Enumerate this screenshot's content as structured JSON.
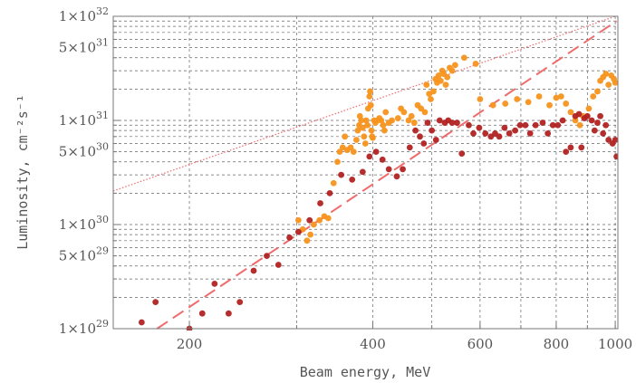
{
  "chart_data": {
    "type": "scatter",
    "xlabel": "Beam energy, MeV",
    "ylabel": "Luminosity, cm⁻²s⁻¹",
    "x_scale": "log",
    "y_scale": "log",
    "xlim": [
      150,
      1010
    ],
    "ylim": [
      1e+29,
      1e+32
    ],
    "grid": true,
    "x_ticks": [
      {
        "value": 200,
        "label": "200"
      },
      {
        "value": 400,
        "label": "400"
      },
      {
        "value": 600,
        "label": "600"
      },
      {
        "value": 800,
        "label": "800"
      },
      {
        "value": 1000,
        "label": "1000"
      }
    ],
    "y_ticks": [
      {
        "value": 1e+29,
        "mant": "1",
        "exp": "29"
      },
      {
        "value": 5e+29,
        "mant": "5",
        "exp": "29"
      },
      {
        "value": 1e+30,
        "mant": "1",
        "exp": "30"
      },
      {
        "value": 5e+30,
        "mant": "5",
        "exp": "30"
      },
      {
        "value": 1e+31,
        "mant": "1",
        "exp": "31"
      },
      {
        "value": 5e+31,
        "mant": "5",
        "exp": "31"
      },
      {
        "value": 1e+32,
        "mant": "1",
        "exp": "32"
      }
    ],
    "series": [
      {
        "color": "#f7941d",
        "points": [
          [
            302,
            1.1e+30
          ],
          [
            307,
            9e+29
          ],
          [
            312,
            7e+29
          ],
          [
            316,
            8e+29
          ],
          [
            320,
            1e+30
          ],
          [
            327,
            1.1e+30
          ],
          [
            333,
            1.2e+30
          ],
          [
            338,
            1.15e+30
          ],
          [
            345,
            2.5e+30
          ],
          [
            350,
            4e+30
          ],
          [
            353,
            5e+30
          ],
          [
            357,
            5.5e+30
          ],
          [
            360,
            7e+30
          ],
          [
            363,
            5.2e+30
          ],
          [
            368,
            5.5e+30
          ],
          [
            372,
            5e+30
          ],
          [
            376,
            6.5e+30
          ],
          [
            378,
            8e+30
          ],
          [
            380,
            9e+30
          ],
          [
            381,
            1.1e+31
          ],
          [
            383,
            1e+31
          ],
          [
            385,
            8.5e+30
          ],
          [
            387,
            7e+30
          ],
          [
            389,
            6e+30
          ],
          [
            390,
            1e+31
          ],
          [
            392,
            9e+30
          ],
          [
            393,
            1.3e+31
          ],
          [
            395,
            1.7e+31
          ],
          [
            396,
            1.9e+31
          ],
          [
            397,
            1.4e+31
          ],
          [
            398,
            8e+30
          ],
          [
            399,
            7e+30
          ],
          [
            400,
            6.8e+30
          ],
          [
            402,
            1e+31
          ],
          [
            404,
            9.5e+30
          ],
          [
            407,
            1e+31
          ],
          [
            410,
            1.05e+31
          ],
          [
            413,
            1e+31
          ],
          [
            416,
            9e+30
          ],
          [
            418,
            8e+30
          ],
          [
            420,
            1.2e+31
          ],
          [
            425,
            9.5e+30
          ],
          [
            430,
            1e+31
          ],
          [
            440,
            1.05e+31
          ],
          [
            445,
            1.3e+31
          ],
          [
            450,
            1.2e+31
          ],
          [
            458,
            1e+31
          ],
          [
            463,
            1.1e+31
          ],
          [
            468,
            9.5e+30
          ],
          [
            474,
            1.4e+31
          ],
          [
            480,
            1.3e+31
          ],
          [
            487,
            1.2e+31
          ],
          [
            490,
            2.2e+31
          ],
          [
            495,
            1.8e+31
          ],
          [
            498,
            1.6e+31
          ],
          [
            503,
            1.9e+31
          ],
          [
            507,
            2.5e+31
          ],
          [
            510,
            2.3e+31
          ],
          [
            513,
            2.7e+31
          ],
          [
            517,
            2.4e+31
          ],
          [
            520,
            3e+31
          ],
          [
            523,
            2.8e+31
          ],
          [
            527,
            2.2e+31
          ],
          [
            530,
            2.6e+31
          ],
          [
            535,
            3.2e+31
          ],
          [
            540,
            3e+31
          ],
          [
            546,
            3.4e+31
          ],
          [
            565,
            4e+31
          ],
          [
            590,
            3.5e+31
          ],
          [
            600,
            1.6e+31
          ],
          [
            630,
            1.4e+31
          ],
          [
            660,
            1.45e+31
          ],
          [
            690,
            1.6e+31
          ],
          [
            720,
            1.5e+31
          ],
          [
            750,
            1.7e+31
          ],
          [
            780,
            1.4e+31
          ],
          [
            800,
            1.65e+31
          ],
          [
            815,
            1.7e+31
          ],
          [
            830,
            1.45e+31
          ],
          [
            845,
            1.2e+31
          ],
          [
            860,
            1e+31
          ],
          [
            875,
            9e+30
          ],
          [
            885,
            1.1e+31
          ],
          [
            905,
            1.3e+31
          ],
          [
            920,
            1.7e+31
          ],
          [
            935,
            1.9e+31
          ],
          [
            945,
            2.4e+31
          ],
          [
            955,
            2.6e+31
          ],
          [
            965,
            2.8e+31
          ],
          [
            975,
            2.2e+31
          ],
          [
            985,
            2.7e+31
          ],
          [
            995,
            2.5e+31
          ],
          [
            1000,
            2.3e+31
          ]
        ]
      },
      {
        "color": "#b22222",
        "points": [
          [
            167,
            1.15e+29
          ],
          [
            176,
            1.8e+29
          ],
          [
            187,
            8.5e+28
          ],
          [
            200,
            1e+29
          ],
          [
            210,
            1.4e+29
          ],
          [
            220,
            2.7e+29
          ],
          [
            232,
            1.4e+29
          ],
          [
            242,
            1.8e+29
          ],
          [
            255,
            3.6e+29
          ],
          [
            268,
            5e+29
          ],
          [
            280,
            4.1e+29
          ],
          [
            292,
            7.5e+29
          ],
          [
            302,
            8.5e+29
          ],
          [
            315,
            1.1e+30
          ],
          [
            328,
            1.6e+30
          ],
          [
            340,
            2e+30
          ],
          [
            355,
            3e+30
          ],
          [
            370,
            2.7e+30
          ],
          [
            385,
            3.2e+30
          ],
          [
            395,
            4.5e+30
          ],
          [
            405,
            5e+30
          ],
          [
            415,
            4.2e+30
          ],
          [
            425,
            3.4e+30
          ],
          [
            438,
            2.9e+30
          ],
          [
            448,
            3.4e+30
          ],
          [
            460,
            5.5e+30
          ],
          [
            470,
            8e+30
          ],
          [
            478,
            7e+30
          ],
          [
            485,
            6e+30
          ],
          [
            492,
            9.5e+30
          ],
          [
            500,
            8e+30
          ],
          [
            508,
            6.5e+30
          ],
          [
            515,
            1e+31
          ],
          [
            525,
            9.5e+30
          ],
          [
            532,
            1e+31
          ],
          [
            540,
            9.5e+30
          ],
          [
            550,
            9.5e+30
          ],
          [
            560,
            4.8e+30
          ],
          [
            575,
            9e+30
          ],
          [
            585,
            7.5e+30
          ],
          [
            598,
            8.5e+30
          ],
          [
            612,
            7.5e+30
          ],
          [
            625,
            7e+30
          ],
          [
            635,
            7.5e+30
          ],
          [
            645,
            7e+30
          ],
          [
            658,
            8.5e+30
          ],
          [
            670,
            7.5e+30
          ],
          [
            685,
            8e+30
          ],
          [
            698,
            9e+30
          ],
          [
            712,
            9e+30
          ],
          [
            725,
            7.5e+30
          ],
          [
            740,
            9e+30
          ],
          [
            760,
            9.5e+30
          ],
          [
            775,
            7.5e+30
          ],
          [
            790,
            9e+30
          ],
          [
            805,
            9e+30
          ],
          [
            820,
            1e+31
          ],
          [
            830,
            5e+30
          ],
          [
            845,
            5.5e+30
          ],
          [
            860,
            1.1e+31
          ],
          [
            872,
            1.15e+31
          ],
          [
            880,
            5.5e+30
          ],
          [
            890,
            1.05e+31
          ],
          [
            900,
            1.1e+31
          ],
          [
            915,
            1e+31
          ],
          [
            925,
            8e+30
          ],
          [
            935,
            9.5e+30
          ],
          [
            945,
            1.1e+31
          ],
          [
            955,
            7.5e+30
          ],
          [
            965,
            9e+30
          ],
          [
            975,
            6.5e+30
          ],
          [
            990,
            6e+30
          ],
          [
            1000,
            6.5e+30
          ],
          [
            1005,
            4.5e+30
          ]
        ]
      }
    ],
    "reference_lines": [
      {
        "style": "dotted",
        "color": "#ef6b6b",
        "from": [
          150,
          2.1e+30
        ],
        "to": [
          1000,
          1e+32
        ]
      },
      {
        "style": "dashed",
        "color": "#ef6b6b",
        "from": [
          177,
          1e+29
        ],
        "to": [
          1005,
          9e+31
        ]
      }
    ]
  }
}
